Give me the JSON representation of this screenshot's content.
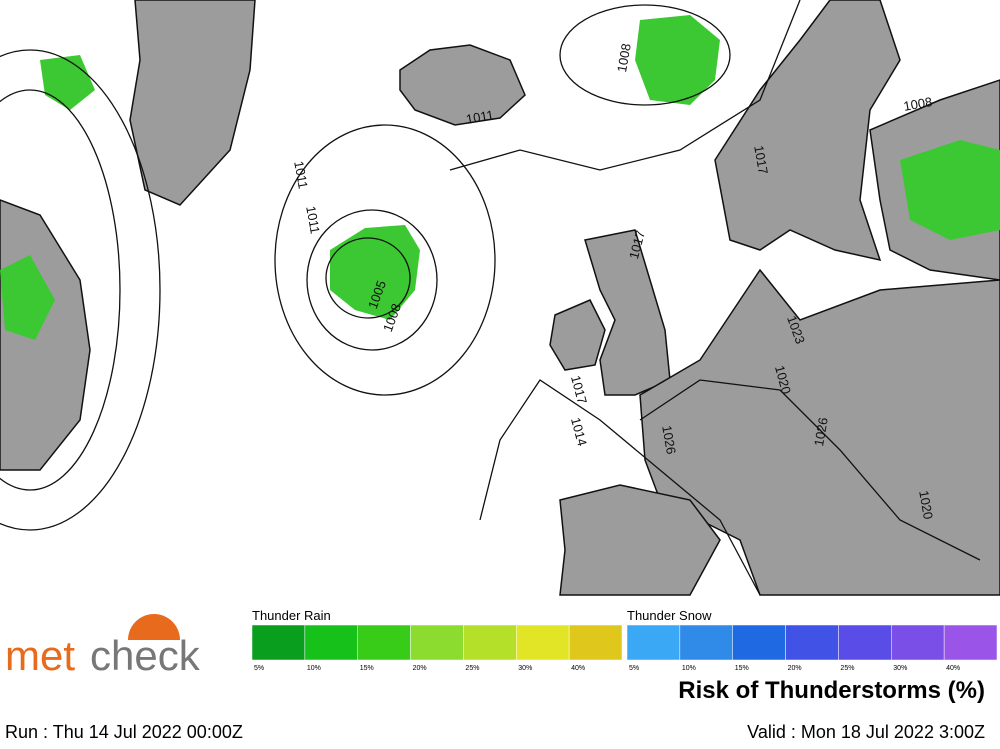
{
  "logo": [
    "met",
    "check"
  ],
  "isobar_labels": [
    "1011",
    "1011",
    "1008",
    "1005",
    "1008",
    "1011",
    "1017",
    "1014",
    "1026",
    "1020",
    "1023",
    "1026",
    "1020",
    "1017",
    "1008",
    "1017"
  ],
  "legend": {
    "rain": {
      "title": "Thunder Rain",
      "colors": [
        "#0a9e1e",
        "#16c21a",
        "#38cc18",
        "#8bdc2f",
        "#b5e02a",
        "#e2e526",
        "#e0c71c"
      ],
      "labels": [
        "5%",
        "10%",
        "15%",
        "20%",
        "25%",
        "30%",
        "40%"
      ]
    },
    "snow": {
      "title": "Thunder Snow",
      "colors": [
        "#3aa8f5",
        "#2f8ae8",
        "#1f6ae3",
        "#4053e6",
        "#5a4ce6",
        "#7a4fe8",
        "#9a55e8"
      ],
      "labels": [
        "5%",
        "10%",
        "15%",
        "20%",
        "25%",
        "30%",
        "40%"
      ]
    },
    "title": "Risk of Thunderstorms (%)"
  },
  "run": "Run : Thu 14 Jul 2022 00:00Z",
  "valid": "Valid : Mon 18 Jul 2022 3:00Z"
}
